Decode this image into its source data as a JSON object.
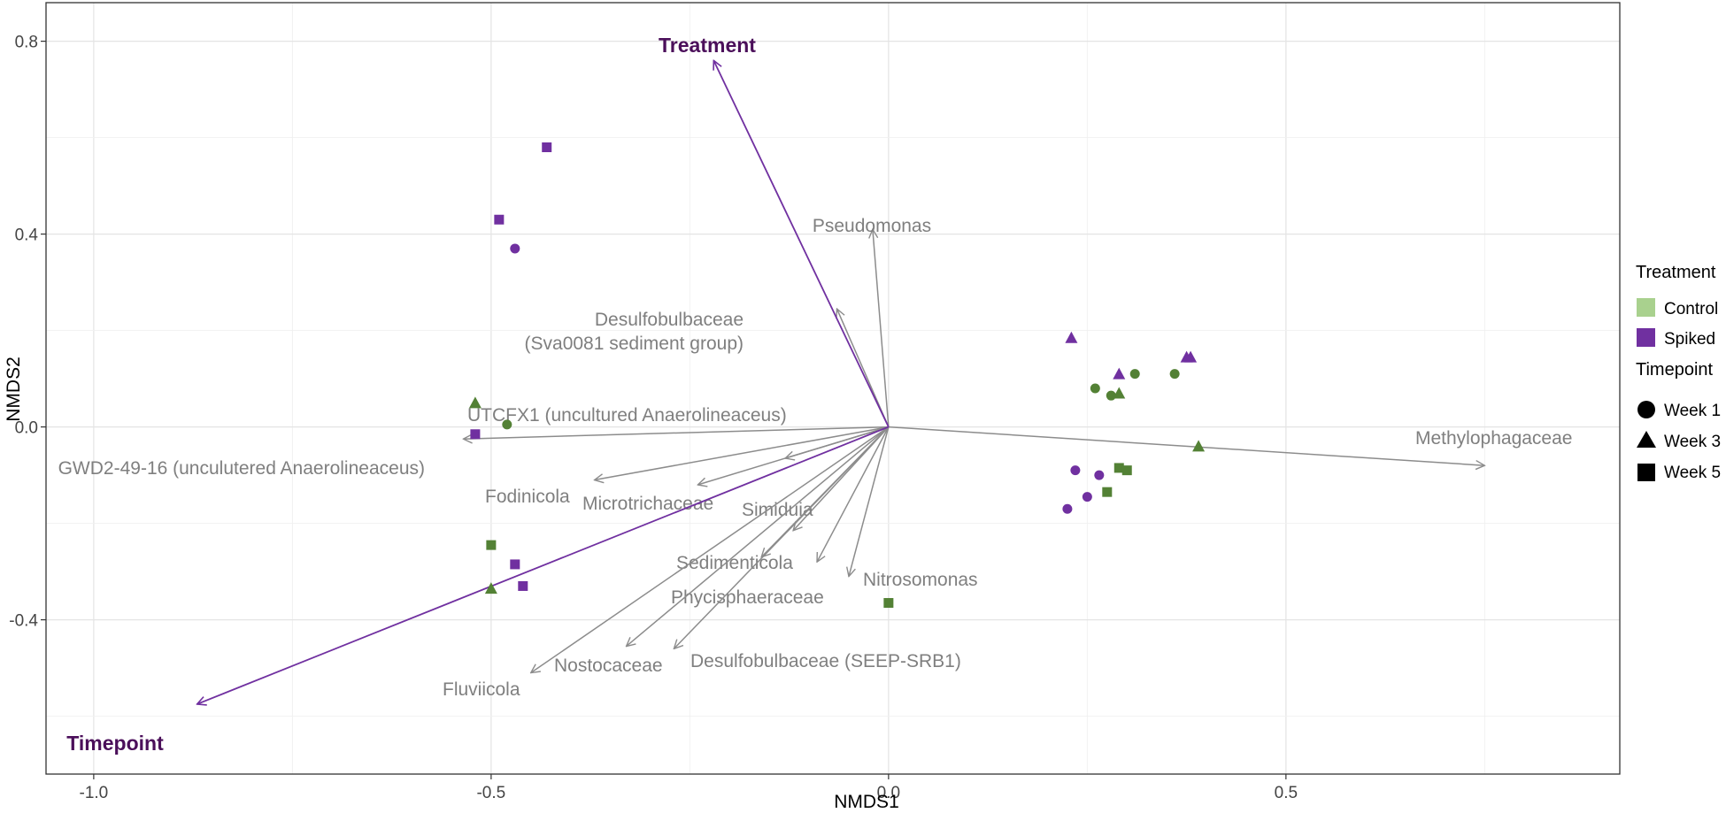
{
  "chart_data": {
    "type": "scatter",
    "title": "",
    "xlabel": "NMDS1",
    "ylabel": "NMDS2",
    "xlim": [
      -1.06,
      0.92
    ],
    "ylim": [
      -0.72,
      0.88
    ],
    "x_ticks": [
      {
        "value": -1.0,
        "label": "-1.0"
      },
      {
        "value": -0.5,
        "label": "-0.5"
      },
      {
        "value": 0.0,
        "label": "0.0"
      },
      {
        "value": 0.5,
        "label": "0.5"
      }
    ],
    "y_ticks": [
      {
        "value": 0.8,
        "label": "0.8"
      },
      {
        "value": 0.4,
        "label": "0.4"
      },
      {
        "value": 0.0,
        "label": "0.0"
      },
      {
        "value": -0.4,
        "label": "-0.4"
      }
    ],
    "grid": true,
    "colors": {
      "Control": "#538135",
      "Spiked": "#7030a0",
      "species_arrow": "#8c8c8c",
      "env_arrow": "#7030a0",
      "env_label": "#4b0f5a",
      "legend_control": "#a9d18e",
      "legend_spiked": "#7030a0"
    },
    "points": [
      {
        "treatment": "Spiked",
        "timepoint": "Week 5",
        "x": -0.43,
        "y": 0.58
      },
      {
        "treatment": "Spiked",
        "timepoint": "Week 5",
        "x": -0.49,
        "y": 0.43
      },
      {
        "treatment": "Spiked",
        "timepoint": "Week 1",
        "x": -0.47,
        "y": 0.37
      },
      {
        "treatment": "Control",
        "timepoint": "Week 3",
        "x": -0.52,
        "y": 0.05
      },
      {
        "treatment": "Control",
        "timepoint": "Week 1",
        "x": -0.48,
        "y": 0.005
      },
      {
        "treatment": "Spiked",
        "timepoint": "Week 5",
        "x": -0.52,
        "y": -0.015
      },
      {
        "treatment": "Control",
        "timepoint": "Week 5",
        "x": -0.5,
        "y": -0.245
      },
      {
        "treatment": "Spiked",
        "timepoint": "Week 5",
        "x": -0.47,
        "y": -0.285
      },
      {
        "treatment": "Spiked",
        "timepoint": "Week 5",
        "x": -0.46,
        "y": -0.33
      },
      {
        "treatment": "Control",
        "timepoint": "Week 3",
        "x": -0.5,
        "y": -0.335
      },
      {
        "treatment": "Control",
        "timepoint": "Week 5",
        "x": 0.0,
        "y": -0.365
      },
      {
        "treatment": "Spiked",
        "timepoint": "Week 3",
        "x": 0.23,
        "y": 0.185
      },
      {
        "treatment": "Spiked",
        "timepoint": "Week 3",
        "x": 0.375,
        "y": 0.145
      },
      {
        "treatment": "Spiked",
        "timepoint": "Week 3",
        "x": 0.38,
        "y": 0.145
      },
      {
        "treatment": "Spiked",
        "timepoint": "Week 3",
        "x": 0.29,
        "y": 0.11
      },
      {
        "treatment": "Control",
        "timepoint": "Week 1",
        "x": 0.31,
        "y": 0.11
      },
      {
        "treatment": "Control",
        "timepoint": "Week 1",
        "x": 0.36,
        "y": 0.11
      },
      {
        "treatment": "Control",
        "timepoint": "Week 1",
        "x": 0.26,
        "y": 0.08
      },
      {
        "treatment": "Control",
        "timepoint": "Week 3",
        "x": 0.29,
        "y": 0.07
      },
      {
        "treatment": "Control",
        "timepoint": "Week 1",
        "x": 0.28,
        "y": 0.065
      },
      {
        "treatment": "Control",
        "timepoint": "Week 3",
        "x": 0.39,
        "y": -0.04
      },
      {
        "treatment": "Control",
        "timepoint": "Week 5",
        "x": 0.29,
        "y": -0.085
      },
      {
        "treatment": "Control",
        "timepoint": "Week 5",
        "x": 0.3,
        "y": -0.09
      },
      {
        "treatment": "Spiked",
        "timepoint": "Week 1",
        "x": 0.235,
        "y": -0.09
      },
      {
        "treatment": "Spiked",
        "timepoint": "Week 1",
        "x": 0.265,
        "y": -0.1
      },
      {
        "treatment": "Control",
        "timepoint": "Week 5",
        "x": 0.275,
        "y": -0.135
      },
      {
        "treatment": "Spiked",
        "timepoint": "Week 1",
        "x": 0.25,
        "y": -0.145
      },
      {
        "treatment": "Spiked",
        "timepoint": "Week 1",
        "x": 0.225,
        "y": -0.17
      }
    ],
    "species_vectors": [
      {
        "name": "Pseudomonas",
        "x": -0.02,
        "y": 0.41
      },
      {
        "name": "Desulfobulbaceae\n(Sva0081 sediment group)",
        "x": -0.065,
        "y": 0.245
      },
      {
        "name": "UTCFX1 (uncultured Anaerolineaceus)",
        "x": -0.535,
        "y": -0.025
      },
      {
        "name": "GWD2-49-16 (unculutered Anaerolineaceus)",
        "x": -0.37,
        "y": -0.11
      },
      {
        "name": "Fodinicola",
        "x": -0.24,
        "y": -0.12
      },
      {
        "name": "Microtrichaceae",
        "x": -0.13,
        "y": -0.065
      },
      {
        "name": "Simiduia",
        "x": -0.12,
        "y": -0.215
      },
      {
        "name": "Sedimenticola",
        "x": -0.16,
        "y": -0.27
      },
      {
        "name": "Phycisphaeraceae",
        "x": -0.09,
        "y": -0.28
      },
      {
        "name": "Nitrosomonas",
        "x": -0.05,
        "y": -0.31
      },
      {
        "name": "Nostocaceae",
        "x": -0.33,
        "y": -0.455
      },
      {
        "name": "Desulfobulbaceae (SEEP-SRB1)",
        "x": -0.27,
        "y": -0.46
      },
      {
        "name": "Fluviicola",
        "x": -0.45,
        "y": -0.51
      },
      {
        "name": "Methylophagaceae",
        "x": 0.75,
        "y": -0.08
      }
    ],
    "env_vectors": [
      {
        "name": "Treatment",
        "x": -0.22,
        "y": 0.76
      },
      {
        "name": "Timepoint",
        "x": -0.87,
        "y": -0.575
      }
    ],
    "legend": {
      "placement": "right",
      "treatment_title": "Treatment",
      "treatment_items": [
        "Control",
        "Spiked"
      ],
      "timepoint_title": "Timepoint",
      "timepoint_items": [
        "Week 1",
        "Week 3",
        "Week 5"
      ]
    }
  }
}
